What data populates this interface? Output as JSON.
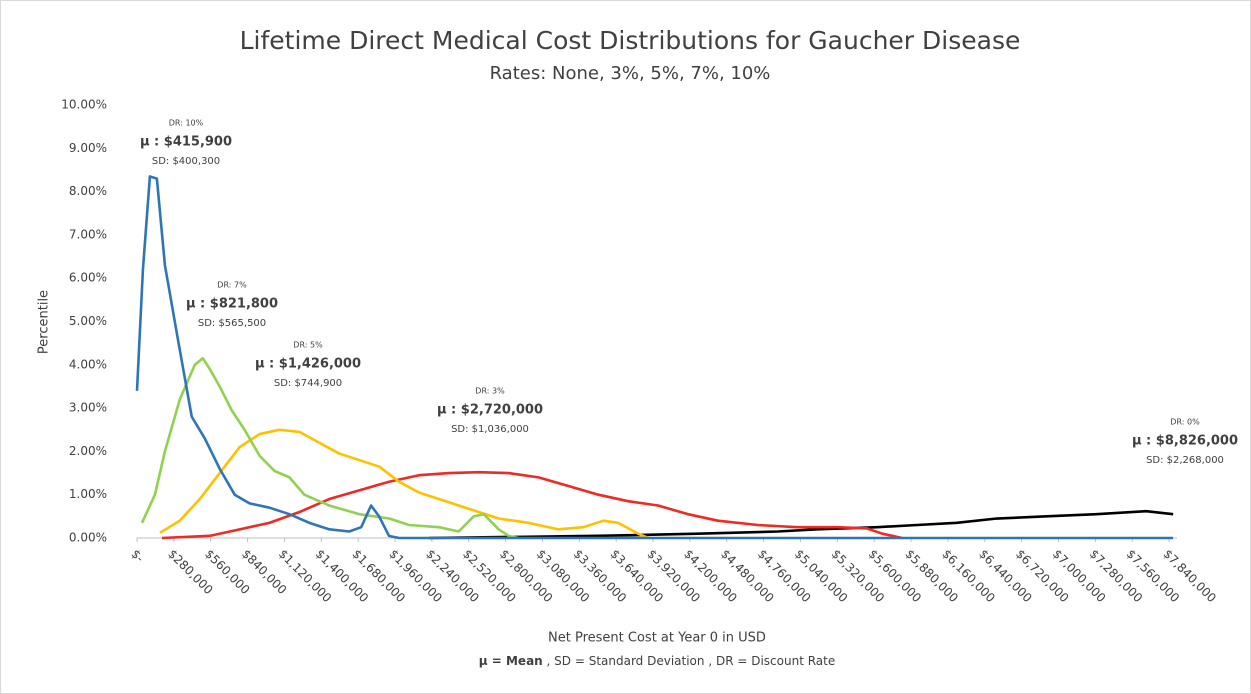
{
  "chart_data": {
    "type": "line",
    "title": "Lifetime Direct Medical Cost Distributions for Gaucher Disease",
    "subtitle": "Rates: None, 3%, 5%, 7%, 10%",
    "x_label": "Net Present Cost at Year 0 in USD",
    "y_label": "Percentile",
    "footnote": {
      "bold": "μ = Mean",
      "rest": " , SD = Standard Deviation , DR = Discount Rate"
    },
    "xlim": [
      0,
      7900000
    ],
    "ylim": [
      0,
      10
    ],
    "xticks": [
      {
        "value": 0,
        "label": "$-"
      },
      {
        "value": 280000,
        "label": "$280,000"
      },
      {
        "value": 560000,
        "label": "$560,000"
      },
      {
        "value": 840000,
        "label": "$840,000"
      },
      {
        "value": 1120000,
        "label": "$1,120,000"
      },
      {
        "value": 1400000,
        "label": "$1,400,000"
      },
      {
        "value": 1680000,
        "label": "$1,680,000"
      },
      {
        "value": 1960000,
        "label": "$1,960,000"
      },
      {
        "value": 2240000,
        "label": "$2,240,000"
      },
      {
        "value": 2520000,
        "label": "$2,520,000"
      },
      {
        "value": 2800000,
        "label": "$2,800,000"
      },
      {
        "value": 3080000,
        "label": "$3,080,000"
      },
      {
        "value": 3360000,
        "label": "$3,360,000"
      },
      {
        "value": 3640000,
        "label": "$3,640,000"
      },
      {
        "value": 3920000,
        "label": "$3,920,000"
      },
      {
        "value": 4200000,
        "label": "$4,200,000"
      },
      {
        "value": 4480000,
        "label": "$4,480,000"
      },
      {
        "value": 4760000,
        "label": "$4,760,000"
      },
      {
        "value": 5040000,
        "label": "$5,040,000"
      },
      {
        "value": 5320000,
        "label": "$5,320,000"
      },
      {
        "value": 5600000,
        "label": "$5,600,000"
      },
      {
        "value": 5880000,
        "label": "$5,880,000"
      },
      {
        "value": 6160000,
        "label": "$6,160,000"
      },
      {
        "value": 6440000,
        "label": "$6,440,000"
      },
      {
        "value": 6720000,
        "label": "$6,720,000"
      },
      {
        "value": 7000000,
        "label": "$7,000,000"
      },
      {
        "value": 7280000,
        "label": "$7,280,000"
      },
      {
        "value": 7560000,
        "label": "$7,560,000"
      },
      {
        "value": 7840000,
        "label": "$7,840,000"
      }
    ],
    "yticks": [
      {
        "value": 0,
        "label": "0.00%"
      },
      {
        "value": 1,
        "label": "1.00%"
      },
      {
        "value": 2,
        "label": "2.00%"
      },
      {
        "value": 3,
        "label": "3.00%"
      },
      {
        "value": 4,
        "label": "4.00%"
      },
      {
        "value": 5,
        "label": "5.00%"
      },
      {
        "value": 6,
        "label": "6.00%"
      },
      {
        "value": 7,
        "label": "7.00%"
      },
      {
        "value": 8,
        "label": "8.00%"
      },
      {
        "value": 9,
        "label": "9.00%"
      },
      {
        "value": 10,
        "label": "10.00%"
      }
    ],
    "grid": false,
    "series": [
      {
        "color": "#000000",
        "x": [
          2217000,
          3504000,
          4261000,
          4866000,
          5169000,
          5623000,
          5926000,
          6228000,
          6531000,
          6910000,
          7288000,
          7666000,
          7871000
        ],
        "values": [
          0,
          0.05,
          0.1,
          0.15,
          0.2,
          0.25,
          0.3,
          0.35,
          0.45,
          0.5,
          0.55,
          0.62,
          0.55
        ]
      },
      {
        "color": "#ee2a24",
        "x": [
          189000,
          553000,
          780000,
          1006000,
          1234000,
          1461000,
          1688000,
          1915000,
          2142000,
          2369000,
          2596000,
          2823000,
          3050000,
          3277000,
          3504000,
          3731000,
          3958000,
          4185000,
          4412000,
          4715000,
          5018000,
          5320000,
          5547000,
          5661000,
          5812000
        ],
        "values": [
          0,
          0.05,
          0.2,
          0.35,
          0.6,
          0.9,
          1.1,
          1.3,
          1.45,
          1.5,
          1.52,
          1.5,
          1.4,
          1.2,
          1.0,
          0.85,
          0.75,
          0.55,
          0.4,
          0.3,
          0.25,
          0.25,
          0.22,
          0.1,
          0
        ]
      },
      {
        "color": "#ffc000",
        "x": [
          174000,
          325000,
          477000,
          628000,
          780000,
          931000,
          1082000,
          1234000,
          1385000,
          1536000,
          1688000,
          1839000,
          1990000,
          2142000,
          2293000,
          2444000,
          2596000,
          2747000,
          2974000,
          3201000,
          3391000,
          3542000,
          3655000,
          3807000,
          3883000
        ],
        "values": [
          0.12,
          0.4,
          0.9,
          1.5,
          2.1,
          2.4,
          2.5,
          2.45,
          2.2,
          1.95,
          1.8,
          1.65,
          1.3,
          1.05,
          0.9,
          0.75,
          0.6,
          0.45,
          0.35,
          0.2,
          0.25,
          0.4,
          0.35,
          0.1,
          0
        ]
      },
      {
        "color": "#92d050",
        "x": [
          38000,
          136000,
          212000,
          325000,
          439000,
          500000,
          553000,
          628000,
          719000,
          817000,
          931000,
          1044000,
          1158000,
          1271000,
          1461000,
          1688000,
          1915000,
          2066000,
          2293000,
          2444000,
          2558000,
          2634000,
          2747000,
          2823000,
          2899000
        ],
        "values": [
          0.35,
          1.0,
          2.0,
          3.2,
          4.0,
          4.15,
          3.9,
          3.5,
          2.95,
          2.5,
          1.9,
          1.55,
          1.4,
          1.0,
          0.75,
          0.55,
          0.45,
          0.3,
          0.25,
          0.15,
          0.5,
          0.55,
          0.2,
          0.05,
          0
        ]
      },
      {
        "color": "#2e75b6",
        "x": [
          0,
          45000,
          98000,
          151000,
          212000,
          310000,
          416000,
          515000,
          628000,
          742000,
          855000,
          1006000,
          1158000,
          1309000,
          1461000,
          1612000,
          1703000,
          1778000,
          1839000,
          1914000,
          1990000,
          7870000
        ],
        "values": [
          3.4,
          6.2,
          8.35,
          8.3,
          6.3,
          4.6,
          2.8,
          2.3,
          1.6,
          1.0,
          0.8,
          0.7,
          0.55,
          0.35,
          0.2,
          0.15,
          0.25,
          0.75,
          0.5,
          0.05,
          0,
          0
        ]
      }
    ],
    "annotations": [
      {
        "dr": "DR: 10%",
        "mean": "μ : $415,900",
        "sd": "SD: $400,300"
      },
      {
        "dr": "DR: 7%",
        "mean": "μ : $821,800",
        "sd": "SD: $565,500"
      },
      {
        "dr": "DR: 5%",
        "mean": "μ : $1,426,000",
        "sd": "SD: $744,900"
      },
      {
        "dr": "DR: 3%",
        "mean": "μ : $2,720,000",
        "sd": "SD: $1,036,000"
      },
      {
        "dr": "DR: 0%",
        "mean": "μ : $8,826,000",
        "sd": "SD: $2,268,000"
      }
    ]
  }
}
